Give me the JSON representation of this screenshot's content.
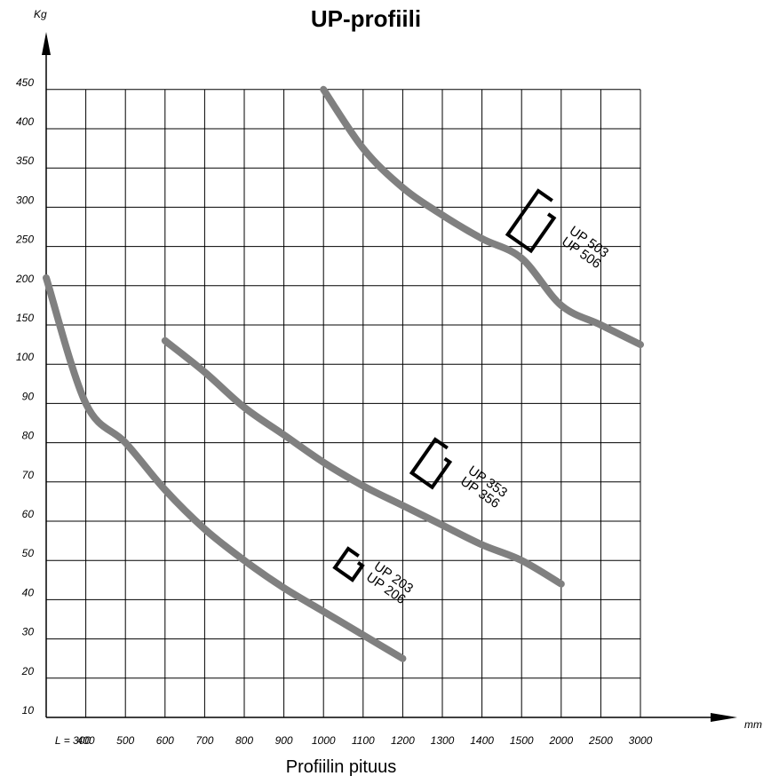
{
  "chart_data": {
    "type": "line",
    "title": "UP-profiili",
    "xlabel": "Profiilin pituus",
    "x_unit": "mm",
    "y_unit": "Kg",
    "x_ticks": [
      "L = 300",
      "400",
      "500",
      "600",
      "700",
      "800",
      "900",
      "1000",
      "1100",
      "1200",
      "1300",
      "1400",
      "1500",
      "2000",
      "2500",
      "3000"
    ],
    "y_ticks": [
      "10",
      "20",
      "30",
      "40",
      "50",
      "60",
      "70",
      "80",
      "90",
      "100",
      "150",
      "200",
      "250",
      "300",
      "350",
      "400",
      "450"
    ],
    "grid": true,
    "curve_color": "#808080",
    "series": [
      {
        "labels": [
          "UP 203",
          "UP 206"
        ],
        "points": [
          [
            "300",
            "210"
          ],
          [
            "400",
            "90"
          ],
          [
            "500",
            "80"
          ],
          [
            "600",
            "68"
          ],
          [
            "700",
            "58"
          ],
          [
            "800",
            "50"
          ],
          [
            "900",
            "43"
          ],
          [
            "1000",
            "37"
          ],
          [
            "1100",
            "31"
          ],
          [
            "1200",
            "25"
          ]
        ]
      },
      {
        "labels": [
          "UP 353",
          "UP 356"
        ],
        "points": [
          [
            "600",
            "130"
          ],
          [
            "700",
            "98"
          ],
          [
            "800",
            "89"
          ],
          [
            "900",
            "82"
          ],
          [
            "1000",
            "75"
          ],
          [
            "1100",
            "69"
          ],
          [
            "1200",
            "64"
          ],
          [
            "1300",
            "59"
          ],
          [
            "1400",
            "54"
          ],
          [
            "1500",
            "50"
          ],
          [
            "2000",
            "44"
          ]
        ]
      },
      {
        "labels": [
          "UP 503",
          "UP 506"
        ],
        "points": [
          [
            "1000",
            "450"
          ],
          [
            "1100",
            "375"
          ],
          [
            "1200",
            "325"
          ],
          [
            "1300",
            "290"
          ],
          [
            "1400",
            "260"
          ],
          [
            "1500",
            "235"
          ],
          [
            "2000",
            "175"
          ],
          [
            "2500",
            "150"
          ],
          [
            "3000",
            "125"
          ]
        ]
      }
    ]
  }
}
